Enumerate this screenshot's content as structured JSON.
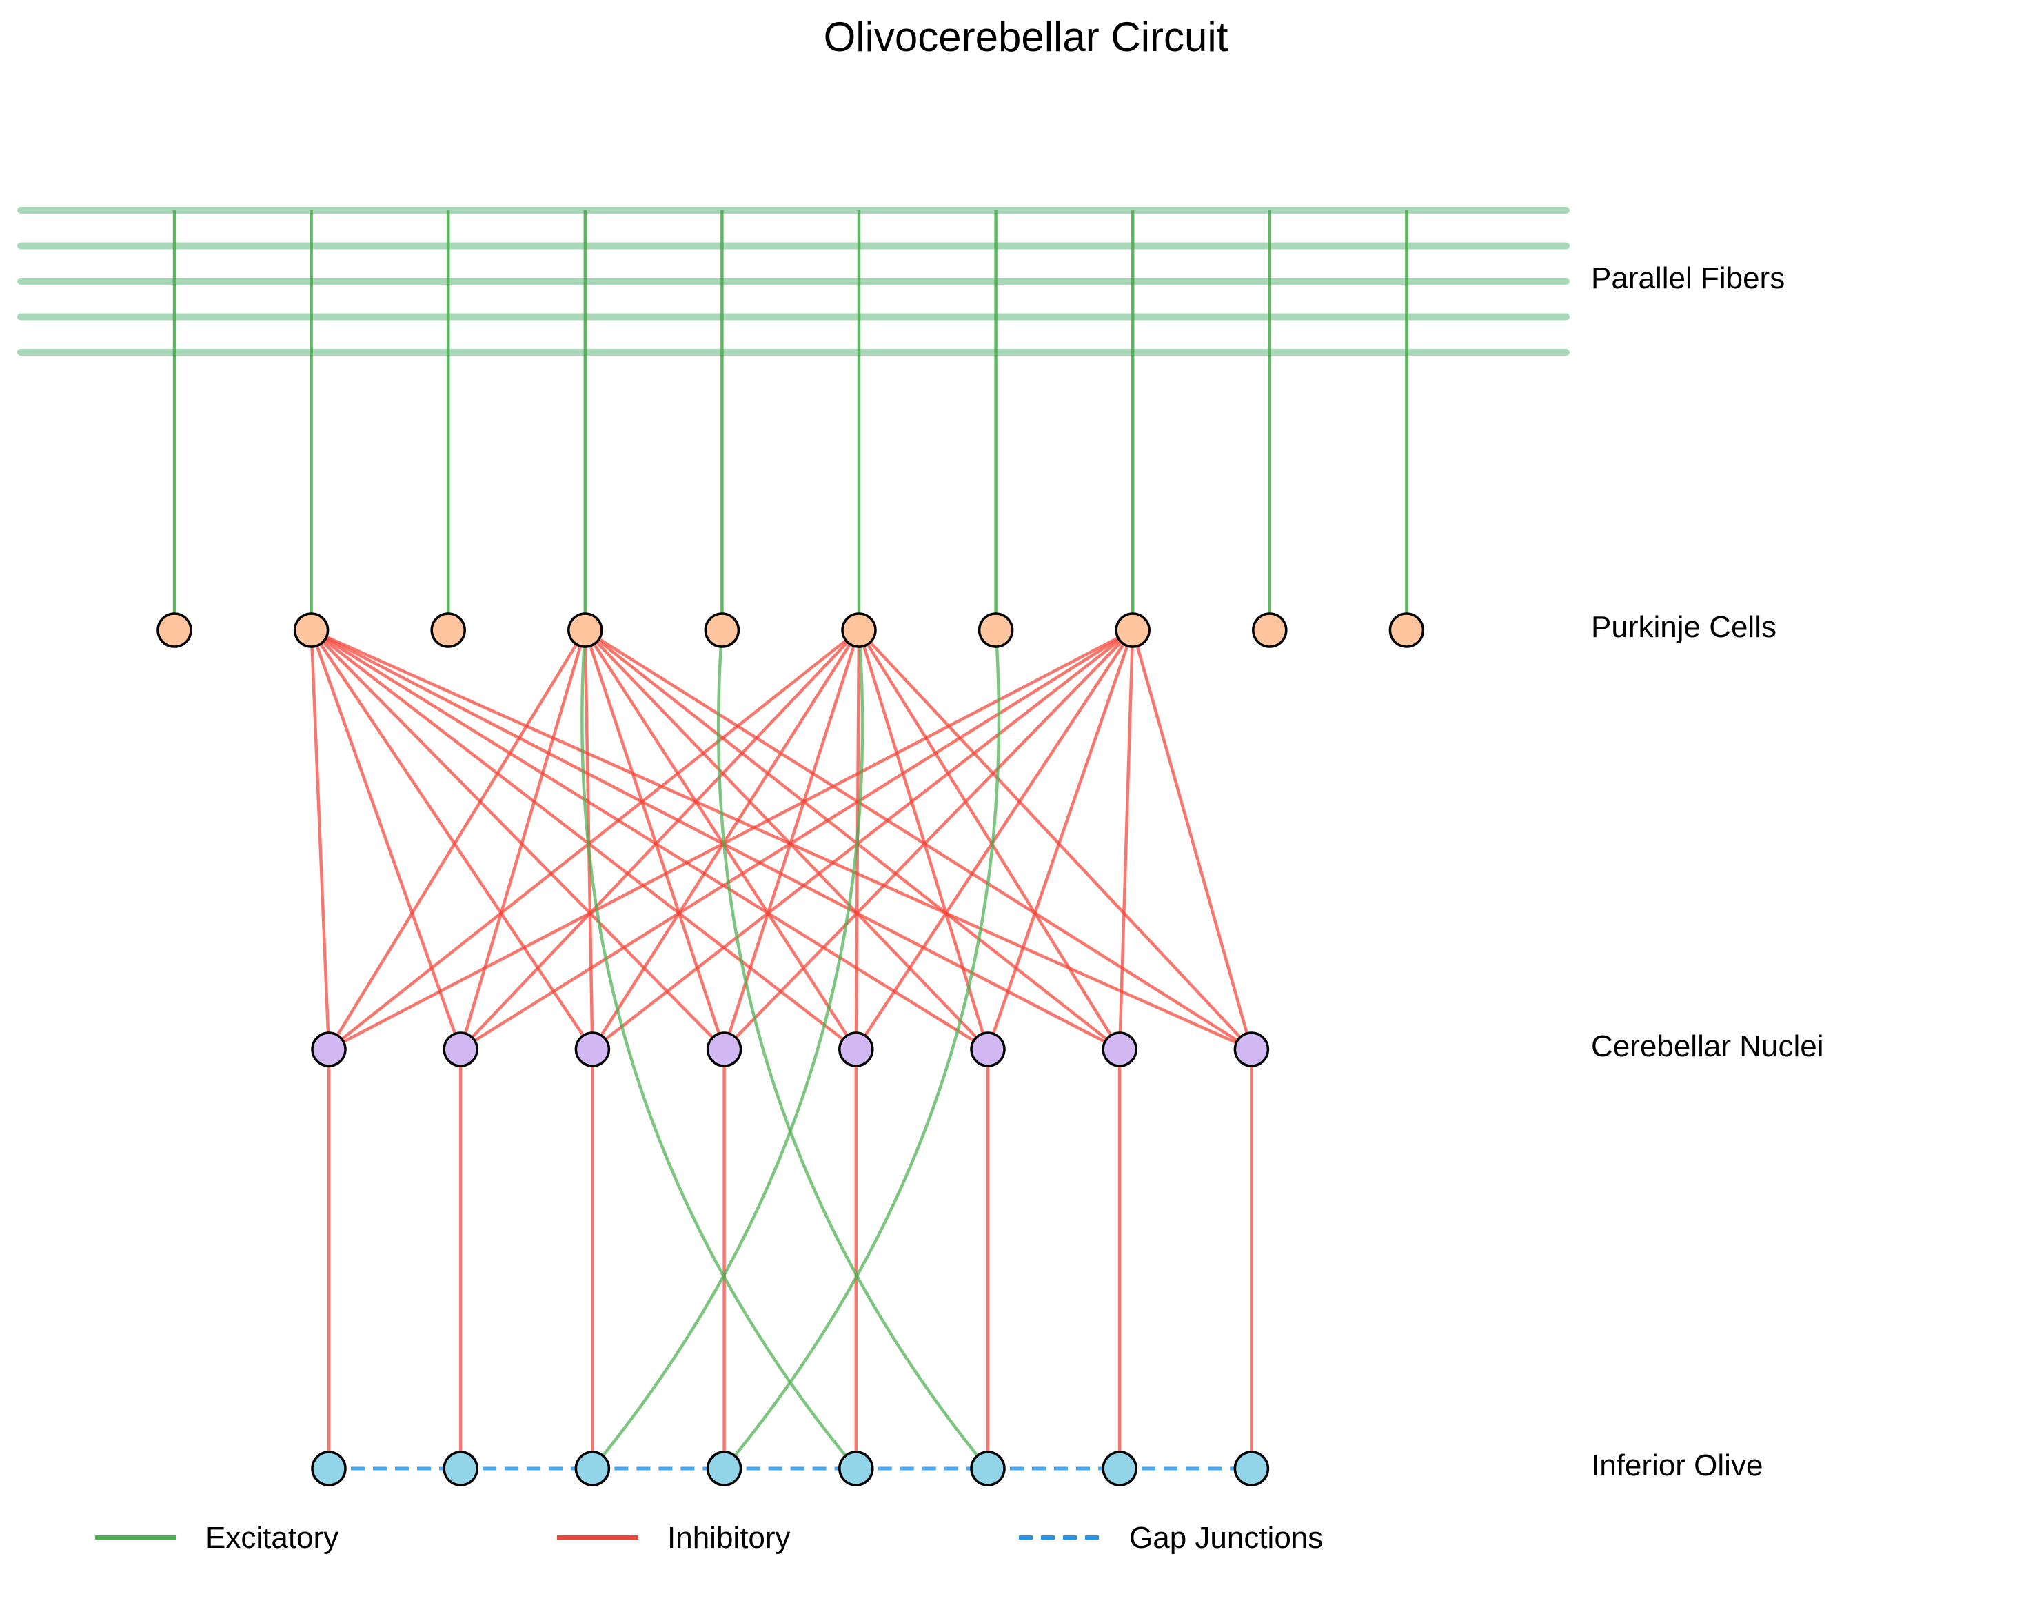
{
  "title": "Olivocerebellar Circuit",
  "layers": {
    "parallel_fibers": {
      "label": "Parallel Fibers",
      "count": 5
    },
    "purkinje": {
      "label": "Purkinje Cells",
      "count": 10
    },
    "nuclei": {
      "label": "Cerebellar Nuclei",
      "count": 8
    },
    "olive": {
      "label": "Inferior Olive",
      "count": 8
    }
  },
  "colors": {
    "purkinje_fill": "#FFC59E",
    "nuclei_fill": "#D2B8F2",
    "olive_fill": "#92D4E8",
    "excitatory": "#4CAF50",
    "parallel_fiber": "#A9D8B8",
    "inhibitory": "#F44336",
    "gap_junction": "#2196F3"
  },
  "connections": {
    "parallel_to_purkinje": [
      0,
      1,
      2,
      3,
      4,
      5,
      6,
      7,
      8,
      9
    ],
    "purkinje_to_nuclei_sources": [
      1,
      3,
      5,
      7
    ],
    "nuclei_to_olive": [
      0,
      1,
      2,
      3,
      4,
      5,
      6,
      7
    ],
    "climbing_fibers": [
      {
        "olive": 2,
        "purkinje": 5
      },
      {
        "olive": 3,
        "purkinje": 6
      },
      {
        "olive": 4,
        "purkinje": 3
      },
      {
        "olive": 5,
        "purkinje": 4
      }
    ],
    "gap_junctions": [
      [
        0,
        1
      ],
      [
        1,
        2
      ],
      [
        2,
        3
      ],
      [
        3,
        4
      ],
      [
        4,
        5
      ],
      [
        5,
        6
      ],
      [
        6,
        7
      ]
    ]
  },
  "legend": [
    {
      "label": "Excitatory",
      "style": "solid",
      "color": "#4CAF50"
    },
    {
      "label": "Inhibitory",
      "style": "solid",
      "color": "#F44336"
    },
    {
      "label": "Gap Junctions",
      "style": "dashed",
      "color": "#2196F3"
    }
  ]
}
